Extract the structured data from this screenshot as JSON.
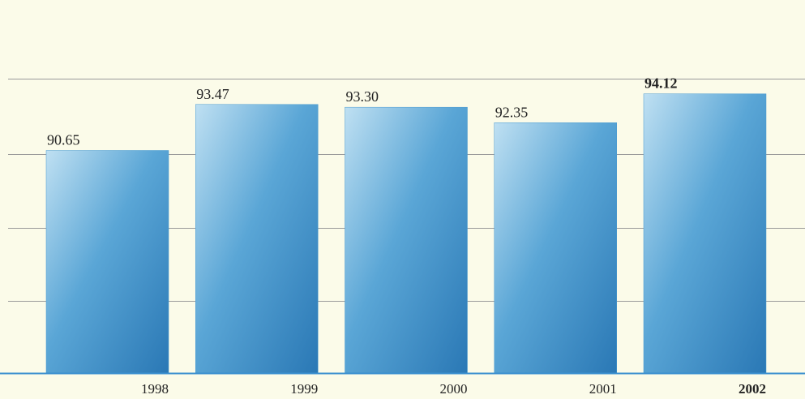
{
  "chart_data": {
    "type": "bar",
    "categories": [
      "1998",
      "1999",
      "2000",
      "2001",
      "2002"
    ],
    "values": [
      90.65,
      93.47,
      93.3,
      92.35,
      94.12
    ],
    "value_labels": [
      "90.65",
      "93.47",
      "93.30",
      "92.35",
      "94.12"
    ],
    "color": "#4a9ad0",
    "ylim": [
      77,
      95
    ]
  }
}
